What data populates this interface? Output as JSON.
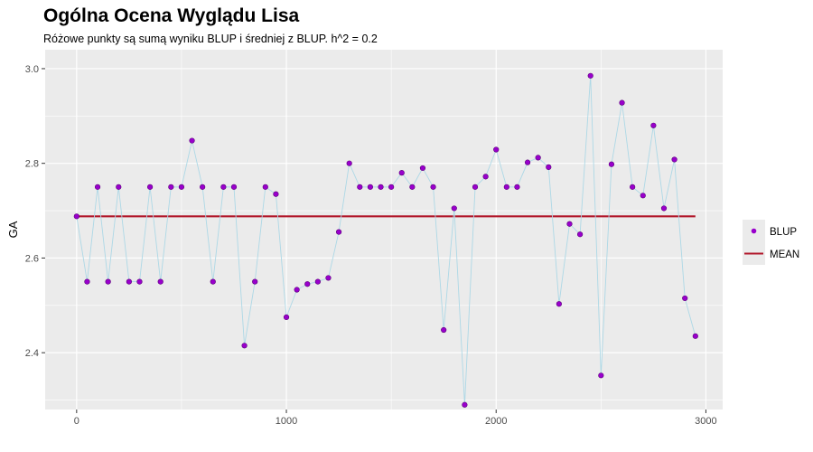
{
  "chart_data": {
    "type": "line",
    "title": "Ogólna Ocena Wyglądu Lisa",
    "subtitle": "Różowe punkty są sumą wyniku BLUP i średniej z BLUP. h^2 = 0.2",
    "xlabel": "",
    "ylabel": "GA",
    "xlim": [
      -150,
      3080
    ],
    "ylim": [
      2.28,
      3.04
    ],
    "x_ticks": [
      0,
      1000,
      2000,
      3000
    ],
    "x_tick_labels": [
      "0",
      "1000",
      "2000",
      "3000"
    ],
    "y_ticks": [
      2.4,
      2.6,
      2.8,
      3.0
    ],
    "y_tick_labels": [
      "2.4",
      "2.6",
      "2.8",
      "3.0"
    ],
    "grid": true,
    "legend_position": "right",
    "mean": 2.688,
    "series": [
      {
        "name": "BLUP",
        "color": "#9900cc",
        "line_color": "#add8e6",
        "x": [
          0,
          50,
          100,
          150,
          200,
          250,
          300,
          350,
          400,
          450,
          500,
          550,
          600,
          650,
          700,
          750,
          800,
          850,
          900,
          950,
          1000,
          1050,
          1100,
          1150,
          1200,
          1250,
          1300,
          1350,
          1400,
          1450,
          1500,
          1550,
          1600,
          1650,
          1700,
          1750,
          1800,
          1850,
          1900,
          1950,
          2000,
          2050,
          2100,
          2150,
          2200,
          2250,
          2300,
          2350,
          2400,
          2450,
          2500,
          2550,
          2600,
          2650,
          2700,
          2750,
          2800,
          2850,
          2900,
          2950
        ],
        "y": [
          2.688,
          2.55,
          2.75,
          2.55,
          2.75,
          2.55,
          2.55,
          2.75,
          2.55,
          2.75,
          2.75,
          2.848,
          2.75,
          2.55,
          2.75,
          2.75,
          2.415,
          2.55,
          2.75,
          2.735,
          2.475,
          2.533,
          2.545,
          2.55,
          2.558,
          2.655,
          2.8,
          2.75,
          2.75,
          2.75,
          2.75,
          2.78,
          2.75,
          2.79,
          2.75,
          2.448,
          2.705,
          2.29,
          2.75,
          2.772,
          2.829,
          2.75,
          2.75,
          2.802,
          2.812,
          2.792,
          2.503,
          2.672,
          2.65,
          2.985,
          2.352,
          2.798,
          2.928,
          2.75,
          2.732,
          2.88,
          2.705,
          2.808,
          2.515,
          2.435
        ]
      },
      {
        "name": "MEAN",
        "color": "#b2182b"
      }
    ]
  }
}
